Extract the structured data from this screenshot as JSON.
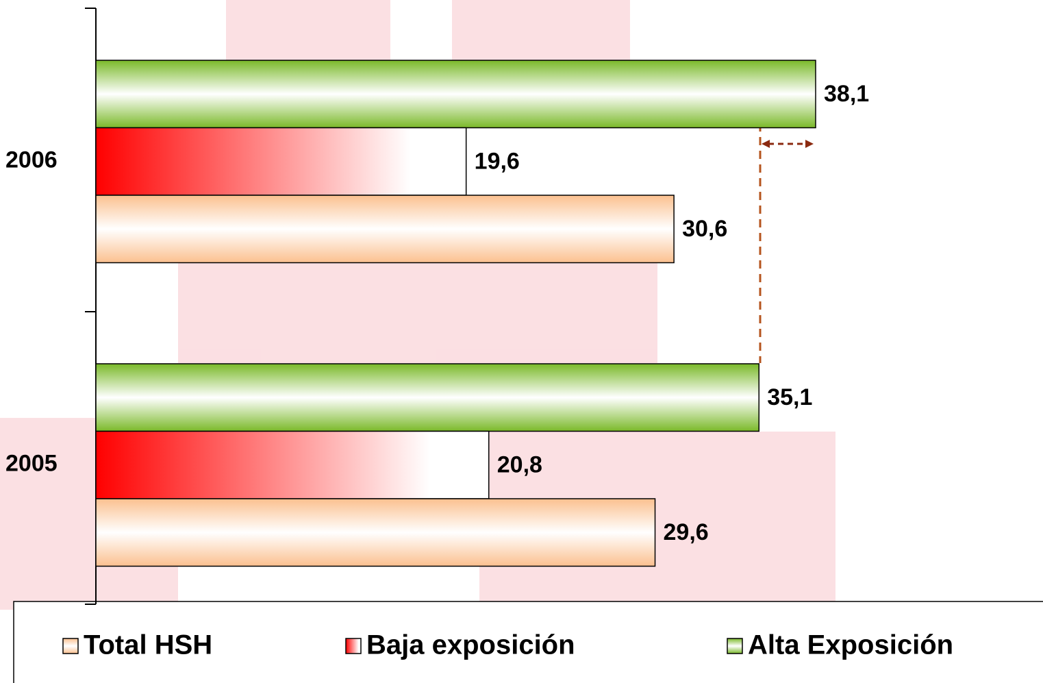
{
  "chart_data": {
    "type": "hbar",
    "categories": [
      "2006",
      "2005"
    ],
    "series": [
      {
        "name": "Total HSH",
        "color": "#fbc08f",
        "values": [
          30.6,
          29.6
        ],
        "value_labels": [
          "30,6",
          "29,6"
        ]
      },
      {
        "name": "Baja exposición",
        "color": "#ff0000",
        "values": [
          19.6,
          20.8
        ],
        "value_labels": [
          "19,6",
          "20,8"
        ]
      },
      {
        "name": "Alta Exposición",
        "color": "#7ab929",
        "values": [
          38.1,
          35.1
        ],
        "value_labels": [
          "38,1",
          "35,1"
        ]
      }
    ],
    "legend": "bottom"
  }
}
